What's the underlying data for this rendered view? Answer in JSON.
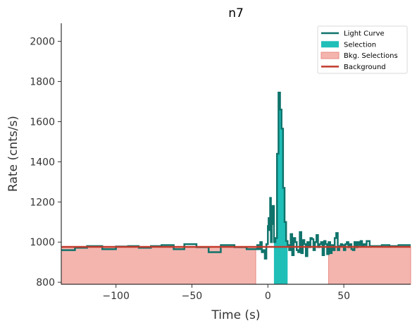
{
  "chart_data": {
    "type": "line",
    "title": "n7",
    "xlabel": "Time (s)",
    "ylabel": "Rate (cnts/s)",
    "xlim": [
      -136,
      94
    ],
    "ylim": [
      790,
      2090
    ],
    "xticks": [
      -100,
      -50,
      0,
      50
    ],
    "xtick_labels": [
      "−100",
      "−50",
      "0",
      "50"
    ],
    "yticks": [
      800,
      1000,
      1200,
      1400,
      1600,
      1800,
      2000
    ],
    "ytick_labels": [
      "800",
      "1000",
      "1200",
      "1400",
      "1600",
      "1800",
      "2000"
    ],
    "grid": false,
    "legend_position": "top-right",
    "legend": [
      {
        "label": "Light Curve",
        "kind": "line",
        "color": "#0f736b"
      },
      {
        "label": "Selection",
        "kind": "patch",
        "color": "#1fbfb8"
      },
      {
        "label": "Bkg. Selections",
        "kind": "patch",
        "color": "#f4b5af"
      },
      {
        "label": "Background",
        "kind": "line",
        "color": "#c1392b"
      }
    ],
    "background_level": 976,
    "bkg_selections": [
      [
        -136,
        -8
      ],
      [
        40,
        94
      ]
    ],
    "selection": [
      4,
      13
    ],
    "series": [
      {
        "name": "Light Curve",
        "x": [
          -136,
          -127,
          -119,
          -109,
          -100,
          -92,
          -85,
          -77,
          -70,
          -62,
          -55,
          -47,
          -39,
          -31,
          -22,
          -14,
          -7,
          -6,
          -5,
          -4,
          -3,
          -2,
          -1,
          0,
          0.5,
          1,
          1.5,
          2,
          2.5,
          3,
          3.5,
          4,
          5,
          6,
          7,
          8,
          9,
          10,
          11,
          12,
          13,
          14,
          15,
          16,
          17,
          18,
          19,
          20,
          21,
          22,
          23,
          24,
          25,
          26,
          27,
          28,
          29,
          30,
          31,
          32,
          33,
          34,
          35,
          36,
          37,
          38,
          39,
          40,
          41,
          42,
          43,
          44,
          45,
          46,
          47,
          48,
          49,
          50,
          51,
          52,
          53,
          54,
          55,
          56,
          57,
          58,
          59,
          60,
          61,
          62,
          63,
          64,
          65,
          67,
          70,
          75,
          80,
          86,
          94
        ],
        "y": [
          960,
          972,
          980,
          965,
          978,
          980,
          972,
          980,
          985,
          965,
          990,
          975,
          950,
          985,
          975,
          965,
          985,
          965,
          1000,
          950,
          960,
          918,
          990,
          1080,
          1120,
          1060,
          1220,
          1000,
          1180,
          1090,
          1180,
          1000,
          1020,
          1440,
          1745,
          1660,
          1565,
          1270,
          1100,
          1005,
          985,
          960,
          1040,
          935,
          1020,
          1000,
          960,
          950,
          1050,
          945,
          1010,
          990,
          930,
          1000,
          975,
          1020,
          1015,
          960,
          1000,
          1035,
          975,
          990,
          1000,
          935,
          1005,
          990,
          940,
          1000,
          945,
          985,
          960,
          1020,
          1045,
          960,
          980,
          990,
          985,
          960,
          990,
          1000,
          975,
          990,
          965,
          960,
          1000,
          975,
          1000,
          985,
          1005,
          980,
          990,
          985,
          1005,
          980,
          980,
          985,
          980,
          985,
          985
        ]
      }
    ]
  }
}
